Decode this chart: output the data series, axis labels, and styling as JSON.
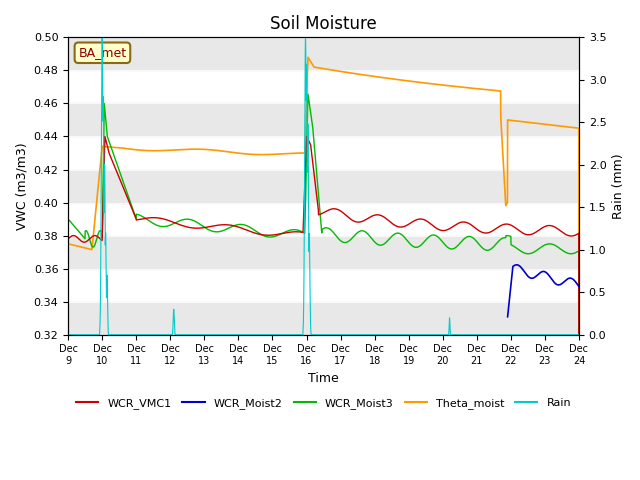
{
  "title": "Soil Moisture",
  "ylabel_left": "VWC (m3/m3)",
  "ylabel_right": "Rain (mm)",
  "xlabel": "Time",
  "ylim_left": [
    0.32,
    0.5
  ],
  "ylim_right": [
    0.0,
    3.5
  ],
  "yticks_left": [
    0.32,
    0.34,
    0.36,
    0.38,
    0.4,
    0.42,
    0.44,
    0.46,
    0.48,
    0.5
  ],
  "yticks_right": [
    0.0,
    0.5,
    1.0,
    1.5,
    2.0,
    2.5,
    3.0,
    3.5
  ],
  "xtick_labels": [
    "Dec\n9",
    "Dec\n10",
    "Dec\n11",
    "Dec\n12",
    "Dec\n13",
    "Dec\n14",
    "Dec\n15",
    "Dec\n16",
    "Dec\n17",
    "Dec\n18",
    "Dec\n19",
    "Dec\n20",
    "Dec\n21",
    "Dec\n22",
    "Dec\n23",
    "Dec\n24"
  ],
  "site_label": "BA_met",
  "colors": {
    "WCR_VMC1": "#cc0000",
    "WCR_Moist2": "#0000cc",
    "WCR_Moist3": "#00bb00",
    "Theta_moist": "#ff9900",
    "Rain": "#00cccc"
  },
  "band_color": "#e8e8e8",
  "bg_color": "#ffffff",
  "title_fontsize": 12
}
